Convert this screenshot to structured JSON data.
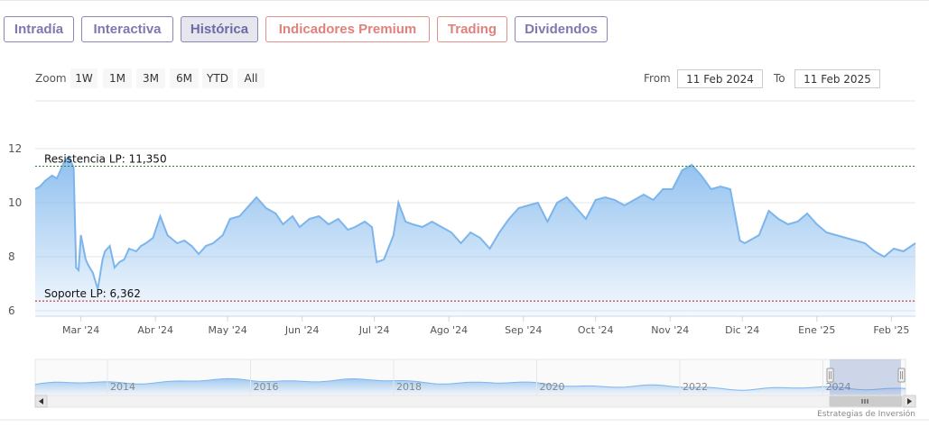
{
  "tabs": [
    {
      "label": "Intradía",
      "style": "purple"
    },
    {
      "label": "Interactiva",
      "style": "purple"
    },
    {
      "label": "Histórica",
      "style": "active"
    },
    {
      "label": "Indicadores Premium",
      "style": "salmon"
    },
    {
      "label": "Trading",
      "style": "salmon"
    },
    {
      "label": "Dividendos",
      "style": "purple"
    }
  ],
  "range_selector": {
    "zoom_label": "Zoom",
    "buttons": [
      "1W",
      "1M",
      "3M",
      "6M",
      "YTD",
      "All"
    ],
    "from_label": "From",
    "from_value": "11 Feb 2024",
    "to_label": "To",
    "to_value": "11 Feb 2025"
  },
  "credit": "Estrategias de Inversión",
  "colors": {
    "series_line": "#7cb5ec",
    "resistance": "#2e7d32",
    "support": "#b71c1c",
    "tab_purple": "#7d79b0",
    "tab_salmon": "#e0827b"
  },
  "chart_data": {
    "type": "area",
    "title": "",
    "xlabel": "",
    "ylabel": "",
    "ylim": [
      6,
      12
    ],
    "yticks": [
      "6",
      "8",
      "10",
      "12"
    ],
    "xticks": [
      "Mar '24",
      "Abr '24",
      "May '24",
      "Jun '24",
      "Jul '24",
      "Ago '24",
      "Sep '24",
      "Oct '24",
      "Nov '24",
      "Dic '24",
      "Ene '25",
      "Feb '25"
    ],
    "xlim": [
      "2024-02-11",
      "2025-02-11"
    ],
    "grid": true,
    "series": [
      {
        "x": [
          "2024-02-11",
          "2024-02-13",
          "2024-02-15",
          "2024-02-18",
          "2024-02-20",
          "2024-02-23",
          "2024-02-25",
          "2024-02-27",
          "2024-02-28",
          "2024-02-29",
          "2024-03-01",
          "2024-03-03",
          "2024-03-04",
          "2024-03-06",
          "2024-03-08",
          "2024-03-10",
          "2024-03-11",
          "2024-03-13",
          "2024-03-15",
          "2024-03-17",
          "2024-03-19",
          "2024-03-21",
          "2024-03-24",
          "2024-03-26",
          "2024-03-28",
          "2024-03-31",
          "2024-04-03",
          "2024-04-06",
          "2024-04-10",
          "2024-04-13",
          "2024-04-16",
          "2024-04-19",
          "2024-04-22",
          "2024-04-25",
          "2024-04-29",
          "2024-05-02",
          "2024-05-06",
          "2024-05-09",
          "2024-05-13",
          "2024-05-17",
          "2024-05-21",
          "2024-05-24",
          "2024-05-28",
          "2024-05-31",
          "2024-06-04",
          "2024-06-08",
          "2024-06-12",
          "2024-06-16",
          "2024-06-20",
          "2024-06-23",
          "2024-06-27",
          "2024-06-30",
          "2024-07-02",
          "2024-07-05",
          "2024-07-09",
          "2024-07-11",
          "2024-07-14",
          "2024-07-17",
          "2024-07-21",
          "2024-07-25",
          "2024-07-29",
          "2024-08-02",
          "2024-08-06",
          "2024-08-10",
          "2024-08-14",
          "2024-08-18",
          "2024-08-22",
          "2024-08-26",
          "2024-08-30",
          "2024-09-03",
          "2024-09-07",
          "2024-09-11",
          "2024-09-15",
          "2024-09-19",
          "2024-09-23",
          "2024-09-27",
          "2024-10-01",
          "2024-10-05",
          "2024-10-09",
          "2024-10-13",
          "2024-10-17",
          "2024-10-21",
          "2024-10-25",
          "2024-10-29",
          "2024-11-02",
          "2024-11-06",
          "2024-11-10",
          "2024-11-14",
          "2024-11-18",
          "2024-11-22",
          "2024-11-26",
          "2024-11-30",
          "2024-12-02",
          "2024-12-04",
          "2024-12-08",
          "2024-12-12",
          "2024-12-16",
          "2024-12-20",
          "2024-12-24",
          "2024-12-28",
          "2025-01-01",
          "2025-01-05",
          "2025-01-09",
          "2025-01-13",
          "2025-01-17",
          "2025-01-21",
          "2025-01-25",
          "2025-01-29",
          "2025-02-02",
          "2025-02-06",
          "2025-02-11"
        ],
        "values": [
          10.5,
          10.6,
          10.8,
          11.0,
          10.9,
          11.5,
          11.7,
          11.3,
          7.6,
          7.5,
          8.8,
          7.9,
          7.7,
          7.4,
          6.8,
          7.9,
          8.2,
          8.4,
          7.6,
          7.8,
          7.9,
          8.3,
          8.2,
          8.4,
          8.5,
          8.7,
          9.5,
          8.8,
          8.5,
          8.6,
          8.4,
          8.1,
          8.4,
          8.5,
          8.8,
          9.4,
          9.5,
          9.8,
          10.2,
          9.8,
          9.6,
          9.2,
          9.5,
          9.1,
          9.4,
          9.5,
          9.2,
          9.4,
          9.0,
          9.1,
          9.3,
          9.1,
          7.8,
          7.9,
          8.8,
          10.0,
          9.3,
          9.2,
          9.1,
          9.3,
          9.1,
          8.9,
          8.5,
          8.9,
          8.7,
          8.3,
          8.9,
          9.4,
          9.8,
          9.9,
          10.0,
          9.3,
          10.0,
          10.2,
          9.8,
          9.4,
          10.1,
          10.2,
          10.1,
          9.9,
          10.1,
          10.3,
          10.1,
          10.5,
          10.5,
          11.2,
          11.4,
          11.0,
          10.5,
          10.6,
          10.5,
          8.6,
          8.5,
          8.6,
          8.8,
          9.7,
          9.4,
          9.2,
          9.3,
          9.6,
          9.2,
          8.9,
          8.8,
          8.7,
          8.6,
          8.5,
          8.2,
          8.0,
          8.3,
          8.2,
          8.5
        ]
      }
    ],
    "plot_lines": [
      {
        "label": "Resistencia LP: 11,350",
        "value": 11.35,
        "color": "#2e7d32"
      },
      {
        "label": "Soporte LP: 6,362",
        "value": 6.362,
        "color": "#b71c1c"
      }
    ],
    "navigator": {
      "xticks": [
        "2014",
        "2016",
        "2018",
        "2020",
        "2022",
        "2024"
      ]
    }
  }
}
